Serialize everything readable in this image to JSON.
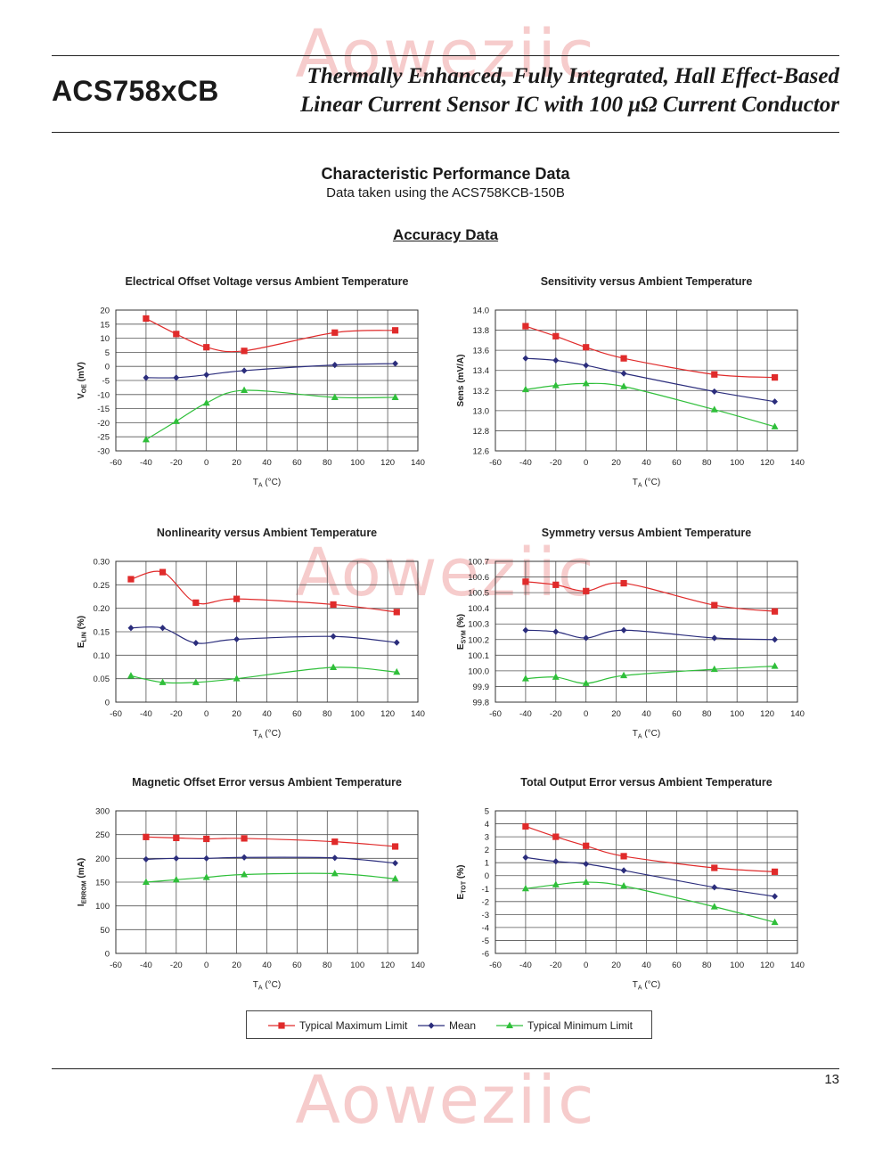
{
  "header": {
    "part_number": "ACS758xCB",
    "subtitle_line1": "Thermally Enhanced, Fully Integrated, Hall Effect-Based",
    "subtitle_line2": "Linear Current Sensor IC with 100 μΩ Current Conductor"
  },
  "watermark_text": "Aoweziic",
  "section": {
    "title": "Characteristic Performance Data",
    "note": "Data taken using the ACS758KCB-150B",
    "subheading": "Accuracy Data"
  },
  "colors": {
    "max": "#e02b2b",
    "mean": "#2b2d7c",
    "min": "#2fbf3a",
    "grid": "#555555"
  },
  "legend": [
    {
      "label": "Typical Maximum Limit",
      "color": "#e02b2b",
      "marker": "square"
    },
    {
      "label": "Mean",
      "color": "#2b2d7c",
      "marker": "diamond"
    },
    {
      "label": "Typical Minimum Limit",
      "color": "#2fbf3a",
      "marker": "triangle"
    }
  ],
  "chart_data": [
    {
      "type": "line",
      "title": "Electrical Offset Voltage versus Ambient Temperature",
      "ylabel_main": "V",
      "ylabel_sub": "OE",
      "ylabel_unit": " (mV)",
      "xlabel_main": "T",
      "xlabel_sub": "A",
      "xlabel_unit": " (°C)",
      "xlim": [
        -60,
        140
      ],
      "ylim": [
        -30,
        20
      ],
      "xticks": [
        -60,
        -40,
        -20,
        0,
        20,
        40,
        60,
        80,
        100,
        120,
        140
      ],
      "yticks": [
        -30,
        -25,
        -20,
        -15,
        -10,
        -5,
        0,
        5,
        10,
        15,
        20
      ],
      "ytick_labels": [
        "-30",
        "-25",
        "-20",
        "-15",
        "-10",
        "-5",
        "0",
        "5",
        "10",
        "15",
        "20"
      ],
      "series": [
        {
          "role": "max",
          "x": [
            -40,
            -20,
            0,
            25,
            85,
            125
          ],
          "y": [
            17,
            11.5,
            6.8,
            5.5,
            12,
            12.8
          ]
        },
        {
          "role": "mean",
          "x": [
            -40,
            -20,
            0,
            25,
            85,
            125
          ],
          "y": [
            -4,
            -4,
            -3,
            -1.5,
            0.5,
            1
          ]
        },
        {
          "role": "min",
          "x": [
            -40,
            -20,
            0,
            25,
            85,
            125
          ],
          "y": [
            -26,
            -19.5,
            -13,
            -8.5,
            -11,
            -11
          ]
        }
      ]
    },
    {
      "type": "line",
      "title": "Sensitivity versus Ambient Temperature",
      "ylabel_main": "Sens (mV/A)",
      "ylabel_sub": "",
      "ylabel_unit": "",
      "xlabel_main": "T",
      "xlabel_sub": "A",
      "xlabel_unit": " (°C)",
      "xlim": [
        -60,
        140
      ],
      "ylim": [
        12.6,
        14.0
      ],
      "xticks": [
        -60,
        -40,
        -20,
        0,
        20,
        40,
        60,
        80,
        100,
        120,
        140
      ],
      "yticks": [
        12.6,
        12.8,
        13.0,
        13.2,
        13.4,
        13.6,
        13.8,
        14.0
      ],
      "ytick_labels": [
        "12.6",
        "12.8",
        "13.0",
        "13.2",
        "13.4",
        "13.6",
        "13.8",
        "14.0"
      ],
      "series": [
        {
          "role": "max",
          "x": [
            -40,
            -20,
            0,
            25,
            85,
            125
          ],
          "y": [
            13.84,
            13.74,
            13.63,
            13.52,
            13.36,
            13.33
          ]
        },
        {
          "role": "mean",
          "x": [
            -40,
            -20,
            0,
            25,
            85,
            125
          ],
          "y": [
            13.52,
            13.5,
            13.45,
            13.37,
            13.19,
            13.09
          ]
        },
        {
          "role": "min",
          "x": [
            -40,
            -20,
            0,
            25,
            85,
            125
          ],
          "y": [
            13.21,
            13.25,
            13.27,
            13.24,
            13.01,
            12.84
          ]
        }
      ]
    },
    {
      "type": "line",
      "title": "Nonlinearity versus Ambient Temperature",
      "ylabel_main": "E",
      "ylabel_sub": "LIN",
      "ylabel_unit": " (%)",
      "xlabel_main": "T",
      "xlabel_sub": "A",
      "xlabel_unit": " (°C)",
      "xlim": [
        -60,
        140
      ],
      "ylim": [
        0,
        0.3
      ],
      "xticks": [
        -60,
        -40,
        -20,
        0,
        20,
        40,
        60,
        80,
        100,
        120,
        140
      ],
      "yticks": [
        0,
        0.05,
        0.1,
        0.15,
        0.2,
        0.25,
        0.3
      ],
      "ytick_labels": [
        "0",
        "0.05",
        "0.10",
        "0.15",
        "0.20",
        "0.25",
        "0.30"
      ],
      "series": [
        {
          "role": "max",
          "x": [
            -50,
            -29,
            -7,
            20,
            84,
            126
          ],
          "y": [
            0.262,
            0.277,
            0.212,
            0.22,
            0.208,
            0.192
          ]
        },
        {
          "role": "mean",
          "x": [
            -50,
            -29,
            -7,
            20,
            84,
            126
          ],
          "y": [
            0.158,
            0.158,
            0.126,
            0.134,
            0.14,
            0.127
          ]
        },
        {
          "role": "min",
          "x": [
            -50,
            -29,
            -7,
            20,
            84,
            126
          ],
          "y": [
            0.056,
            0.042,
            0.042,
            0.05,
            0.074,
            0.064
          ]
        }
      ]
    },
    {
      "type": "line",
      "title": "Symmetry versus Ambient Temperature",
      "ylabel_main": "E",
      "ylabel_sub": "SYM",
      "ylabel_unit": " (%)",
      "xlabel_main": "T",
      "xlabel_sub": "A",
      "xlabel_unit": " (°C)",
      "xlim": [
        -60,
        140
      ],
      "ylim": [
        99.8,
        100.7
      ],
      "xticks": [
        -60,
        -40,
        -20,
        0,
        20,
        40,
        60,
        80,
        100,
        120,
        140
      ],
      "yticks": [
        99.8,
        99.9,
        100.0,
        100.1,
        100.2,
        100.3,
        100.4,
        100.5,
        100.6,
        100.7
      ],
      "ytick_labels": [
        "99.8",
        "99.9",
        "100.0",
        "100.1",
        "100.2",
        "100.3",
        "100.4",
        "100.5",
        "100.6",
        "100.7"
      ],
      "series": [
        {
          "role": "max",
          "x": [
            -40,
            -20,
            0,
            25,
            85,
            125
          ],
          "y": [
            100.57,
            100.55,
            100.51,
            100.56,
            100.42,
            100.38
          ]
        },
        {
          "role": "mean",
          "x": [
            -40,
            -20,
            0,
            25,
            85,
            125
          ],
          "y": [
            100.26,
            100.25,
            100.21,
            100.26,
            100.21,
            100.2
          ]
        },
        {
          "role": "min",
          "x": [
            -40,
            -20,
            0,
            25,
            85,
            125
          ],
          "y": [
            99.95,
            99.96,
            99.92,
            99.97,
            100.01,
            100.03
          ]
        }
      ]
    },
    {
      "type": "line",
      "title": "Magnetic Offset Error versus Ambient Temperature",
      "ylabel_main": "I",
      "ylabel_sub": "ERROM",
      "ylabel_unit": " (mA)",
      "xlabel_main": "T",
      "xlabel_sub": "A",
      "xlabel_unit": " (°C)",
      "xlim": [
        -60,
        140
      ],
      "ylim": [
        0,
        300
      ],
      "xticks": [
        -60,
        -40,
        -20,
        0,
        20,
        40,
        60,
        80,
        100,
        120,
        140
      ],
      "yticks": [
        0,
        50,
        100,
        150,
        200,
        250,
        300
      ],
      "ytick_labels": [
        "0",
        "50",
        "100",
        "150",
        "200",
        "250",
        "300"
      ],
      "series": [
        {
          "role": "max",
          "x": [
            -40,
            -20,
            0,
            25,
            85,
            125
          ],
          "y": [
            245,
            243,
            241,
            242,
            235,
            225
          ]
        },
        {
          "role": "mean",
          "x": [
            -40,
            -20,
            0,
            25,
            85,
            125
          ],
          "y": [
            198,
            200,
            200,
            202,
            201,
            190
          ]
        },
        {
          "role": "min",
          "x": [
            -40,
            -20,
            0,
            25,
            85,
            125
          ],
          "y": [
            150,
            155,
            160,
            166,
            168,
            157
          ]
        }
      ]
    },
    {
      "type": "line",
      "title": "Total Output Error versus Ambient Temperature",
      "ylabel_main": "E",
      "ylabel_sub": "TOT",
      "ylabel_unit": " (%)",
      "xlabel_main": "T",
      "xlabel_sub": "A",
      "xlabel_unit": " (°C)",
      "xlim": [
        -60,
        140
      ],
      "ylim": [
        -6,
        5
      ],
      "xticks": [
        -60,
        -40,
        -20,
        0,
        20,
        40,
        60,
        80,
        100,
        120,
        140
      ],
      "yticks": [
        -6,
        -5,
        -4,
        -3,
        -2,
        -1,
        0,
        1,
        2,
        3,
        4,
        5
      ],
      "ytick_labels": [
        "-6",
        "-5",
        "-4",
        "-3",
        "-2",
        "-1",
        "0",
        "1",
        "2",
        "3",
        "4",
        "5"
      ],
      "series": [
        {
          "role": "max",
          "x": [
            -40,
            -20,
            0,
            25,
            85,
            125
          ],
          "y": [
            3.8,
            3.0,
            2.3,
            1.5,
            0.6,
            0.3
          ]
        },
        {
          "role": "mean",
          "x": [
            -40,
            -20,
            0,
            25,
            85,
            125
          ],
          "y": [
            1.4,
            1.1,
            0.9,
            0.4,
            -0.9,
            -1.6
          ]
        },
        {
          "role": "min",
          "x": [
            -40,
            -20,
            0,
            25,
            85,
            125
          ],
          "y": [
            -1.0,
            -0.7,
            -0.5,
            -0.8,
            -2.4,
            -3.6
          ]
        }
      ]
    }
  ],
  "page_number": "13"
}
